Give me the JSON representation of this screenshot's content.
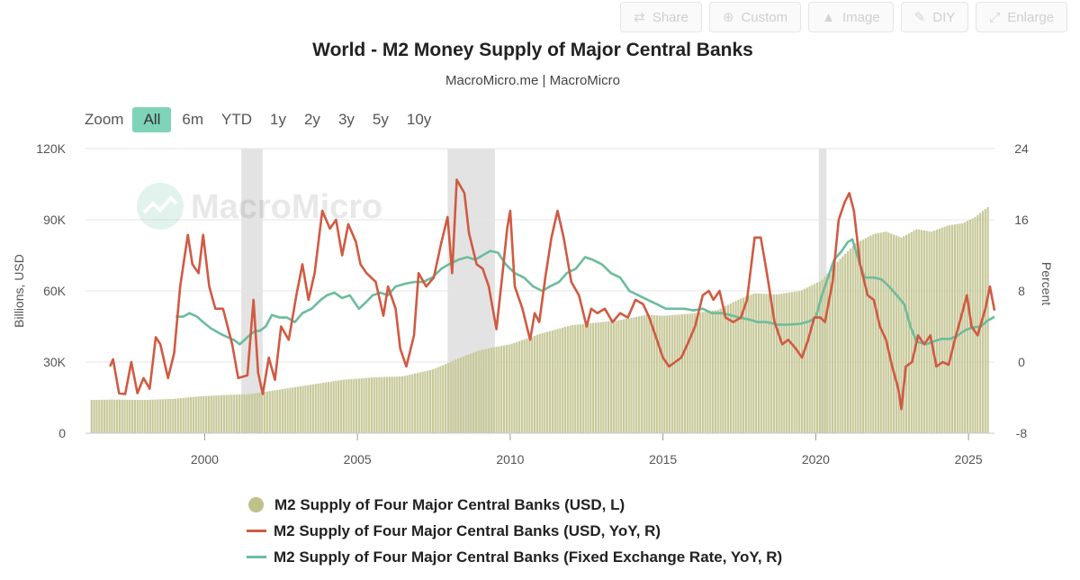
{
  "toolbar": {
    "buttons": [
      {
        "label": "Share",
        "icon": "share-icon"
      },
      {
        "label": "Custom",
        "icon": "plus-circle-icon"
      },
      {
        "label": "Image",
        "icon": "user-icon"
      },
      {
        "label": "DIY",
        "icon": "pencil-icon"
      },
      {
        "label": "Enlarge",
        "icon": "expand-icon"
      }
    ]
  },
  "header": {
    "title": "World - M2 Money Supply of Major Central Banks",
    "subtitle": "MacroMicro.me | MacroMicro"
  },
  "zoom": {
    "label": "Zoom",
    "options": [
      "All",
      "6m",
      "YTD",
      "1y",
      "2y",
      "3y",
      "5y",
      "10y"
    ],
    "active": "All"
  },
  "watermark": "MacroMicro",
  "colors": {
    "bars": "#c8c99a",
    "bar_legend": "#c0c08a",
    "usd_yoy": "#d05a42",
    "fixed_yoy": "#6cbc9c",
    "recession": "#e3e3e3",
    "grid": "#e6e6e6",
    "active_zoom": "#7fd3b8"
  },
  "chart_data": {
    "type": "bar+line",
    "x_range": [
      1996.1,
      2025.85
    ],
    "x_ticks": [
      2000,
      2005,
      2010,
      2015,
      2020,
      2025
    ],
    "left_axis": {
      "label": "Billions, USD",
      "range": [
        0,
        120000
      ],
      "ticks": [
        0,
        30000,
        60000,
        90000,
        120000
      ],
      "tick_labels": [
        "0",
        "30K",
        "60K",
        "90K",
        "120K"
      ]
    },
    "right_axis": {
      "label": "Percent",
      "range": [
        -8,
        24
      ],
      "ticks": [
        -8,
        0,
        8,
        16,
        24
      ],
      "tick_labels": [
        "-8",
        "0",
        "8",
        "16",
        "24"
      ]
    },
    "recession_bands": [
      [
        2001.2,
        2001.9
      ],
      [
        2007.95,
        2009.5
      ],
      [
        2020.1,
        2020.35
      ]
    ],
    "series": [
      {
        "name": "M2 Supply of Four Major Central Banks (USD, L)",
        "type": "column",
        "axis": "left",
        "points": [
          [
            1996.3,
            14000
          ],
          [
            1997.0,
            14200
          ],
          [
            1998.0,
            14000
          ],
          [
            1999.0,
            14500
          ],
          [
            1999.8,
            15500
          ],
          [
            2000.5,
            16000
          ],
          [
            2001.5,
            16500
          ],
          [
            2002.5,
            18500
          ],
          [
            2003.5,
            20500
          ],
          [
            2004.5,
            22500
          ],
          [
            2005.5,
            23500
          ],
          [
            2006.5,
            24000
          ],
          [
            2007.5,
            27000
          ],
          [
            2008.3,
            31500
          ],
          [
            2009.0,
            35000
          ],
          [
            2010.0,
            37500
          ],
          [
            2011.0,
            42000
          ],
          [
            2012.0,
            45500
          ],
          [
            2012.7,
            46500
          ],
          [
            2013.5,
            47500
          ],
          [
            2014.5,
            50000
          ],
          [
            2015.0,
            49500
          ],
          [
            2016.0,
            50500
          ],
          [
            2016.8,
            52000
          ],
          [
            2017.5,
            56500
          ],
          [
            2018.0,
            59000
          ],
          [
            2018.7,
            58500
          ],
          [
            2019.5,
            60000
          ],
          [
            2020.2,
            64500
          ],
          [
            2020.8,
            73500
          ],
          [
            2021.3,
            80000
          ],
          [
            2021.9,
            84000
          ],
          [
            2022.3,
            85000
          ],
          [
            2022.8,
            82500
          ],
          [
            2023.3,
            86000
          ],
          [
            2023.8,
            85000
          ],
          [
            2024.3,
            87500
          ],
          [
            2024.8,
            88500
          ],
          [
            2025.2,
            91000
          ],
          [
            2025.7,
            96000
          ]
        ]
      },
      {
        "name": "M2 Supply of Four Major Central Banks (USD, YoY, R)",
        "type": "line",
        "axis": "right",
        "points": [
          [
            1996.9,
            -0.5
          ],
          [
            1997.0,
            0.3
          ],
          [
            1997.2,
            -3.5
          ],
          [
            1997.4,
            -3.6
          ],
          [
            1997.6,
            0
          ],
          [
            1997.8,
            -3.5
          ],
          [
            1998.0,
            -1.8
          ],
          [
            1998.2,
            -3
          ],
          [
            1998.4,
            2.8
          ],
          [
            1998.55,
            2
          ],
          [
            1998.8,
            -1.8
          ],
          [
            1999.0,
            1
          ],
          [
            1999.2,
            8.5
          ],
          [
            1999.45,
            14.3
          ],
          [
            1999.6,
            11
          ],
          [
            1999.8,
            10
          ],
          [
            1999.95,
            14.3
          ],
          [
            2000.15,
            8.5
          ],
          [
            2000.35,
            6
          ],
          [
            2000.6,
            6
          ],
          [
            2000.9,
            2
          ],
          [
            2001.1,
            -1.8
          ],
          [
            2001.4,
            -1.5
          ],
          [
            2001.6,
            7
          ],
          [
            2001.75,
            -1.2
          ],
          [
            2001.9,
            -3.6
          ],
          [
            2002.1,
            0.5
          ],
          [
            2002.3,
            -2
          ],
          [
            2002.5,
            4
          ],
          [
            2002.75,
            2.5
          ],
          [
            2003.0,
            7.5
          ],
          [
            2003.2,
            11
          ],
          [
            2003.4,
            7
          ],
          [
            2003.6,
            10
          ],
          [
            2003.85,
            17
          ],
          [
            2004.1,
            15
          ],
          [
            2004.3,
            16
          ],
          [
            2004.5,
            12
          ],
          [
            2004.7,
            15.5
          ],
          [
            2004.95,
            13.5
          ],
          [
            2005.1,
            11
          ],
          [
            2005.3,
            10
          ],
          [
            2005.6,
            9
          ],
          [
            2005.85,
            5.2
          ],
          [
            2006.0,
            8.5
          ],
          [
            2006.25,
            6
          ],
          [
            2006.4,
            1.5
          ],
          [
            2006.6,
            -0.5
          ],
          [
            2006.85,
            3
          ],
          [
            2007.0,
            10
          ],
          [
            2007.25,
            8.5
          ],
          [
            2007.5,
            9.5
          ],
          [
            2007.75,
            13.5
          ],
          [
            2007.95,
            16.3
          ],
          [
            2008.1,
            10
          ],
          [
            2008.25,
            20.5
          ],
          [
            2008.5,
            19
          ],
          [
            2008.65,
            14.5
          ],
          [
            2008.9,
            11
          ],
          [
            2009.1,
            10.5
          ],
          [
            2009.3,
            8.5
          ],
          [
            2009.55,
            3.7
          ],
          [
            2009.75,
            10
          ],
          [
            2009.9,
            15
          ],
          [
            2010.0,
            17
          ],
          [
            2010.15,
            8.5
          ],
          [
            2010.4,
            6
          ],
          [
            2010.65,
            2.5
          ],
          [
            2010.8,
            5.5
          ],
          [
            2010.95,
            4.5
          ],
          [
            2011.15,
            9.5
          ],
          [
            2011.35,
            14
          ],
          [
            2011.55,
            17
          ],
          [
            2011.75,
            14
          ],
          [
            2012.0,
            9
          ],
          [
            2012.25,
            7.5
          ],
          [
            2012.5,
            4
          ],
          [
            2012.65,
            6
          ],
          [
            2012.85,
            5.5
          ],
          [
            2013.1,
            6
          ],
          [
            2013.35,
            4.5
          ],
          [
            2013.6,
            5.5
          ],
          [
            2013.85,
            5
          ],
          [
            2014.1,
            7
          ],
          [
            2014.35,
            6.5
          ],
          [
            2014.55,
            5
          ],
          [
            2014.8,
            2.5
          ],
          [
            2015.0,
            0.5
          ],
          [
            2015.2,
            -0.5
          ],
          [
            2015.4,
            0
          ],
          [
            2015.6,
            0.5
          ],
          [
            2015.8,
            2
          ],
          [
            2016.05,
            4
          ],
          [
            2016.3,
            7.5
          ],
          [
            2016.5,
            8
          ],
          [
            2016.65,
            7
          ],
          [
            2016.85,
            8
          ],
          [
            2017.05,
            5
          ],
          [
            2017.3,
            4.5
          ],
          [
            2017.55,
            5
          ],
          [
            2017.75,
            7
          ],
          [
            2018.0,
            14
          ],
          [
            2018.2,
            14
          ],
          [
            2018.4,
            10
          ],
          [
            2018.65,
            4.5
          ],
          [
            2018.9,
            2
          ],
          [
            2019.1,
            2.5
          ],
          [
            2019.35,
            1.5
          ],
          [
            2019.55,
            0.5
          ],
          [
            2019.75,
            2.5
          ],
          [
            2019.95,
            5
          ],
          [
            2020.15,
            5
          ],
          [
            2020.3,
            4.5
          ],
          [
            2020.55,
            9
          ],
          [
            2020.75,
            16
          ],
          [
            2020.95,
            18
          ],
          [
            2021.1,
            19
          ],
          [
            2021.25,
            17
          ],
          [
            2021.45,
            11
          ],
          [
            2021.7,
            7.5
          ],
          [
            2021.9,
            7
          ],
          [
            2022.1,
            4
          ],
          [
            2022.3,
            2.5
          ],
          [
            2022.5,
            -0.5
          ],
          [
            2022.7,
            -3
          ],
          [
            2022.8,
            -5.3
          ],
          [
            2022.95,
            -0.5
          ],
          [
            2023.15,
            0
          ],
          [
            2023.35,
            3
          ],
          [
            2023.55,
            2
          ],
          [
            2023.75,
            3
          ],
          [
            2023.95,
            -0.5
          ],
          [
            2024.15,
            0
          ],
          [
            2024.35,
            -0.3
          ],
          [
            2024.55,
            2.5
          ],
          [
            2024.75,
            5
          ],
          [
            2024.95,
            7.5
          ],
          [
            2025.1,
            4
          ],
          [
            2025.3,
            3
          ],
          [
            2025.55,
            6
          ],
          [
            2025.7,
            8.5
          ],
          [
            2025.85,
            5.8
          ]
        ]
      },
      {
        "name": "M2 Supply of Four Major Central Banks (Fixed Exchange Rate, YoY, R)",
        "type": "line",
        "axis": "right",
        "points": [
          [
            1999.05,
            5.1
          ],
          [
            1999.3,
            5.1
          ],
          [
            1999.5,
            5.5
          ],
          [
            1999.75,
            5.1
          ],
          [
            1999.95,
            4.5
          ],
          [
            2000.2,
            3.8
          ],
          [
            2000.5,
            3.2
          ],
          [
            2000.75,
            2.8
          ],
          [
            2000.95,
            2.5
          ],
          [
            2001.15,
            2.0
          ],
          [
            2001.4,
            2.8
          ],
          [
            2001.65,
            3.5
          ],
          [
            2001.8,
            3.5
          ],
          [
            2002.0,
            4
          ],
          [
            2002.2,
            5.3
          ],
          [
            2002.45,
            5
          ],
          [
            2002.7,
            5
          ],
          [
            2002.95,
            4.5
          ],
          [
            2003.2,
            5.5
          ],
          [
            2003.5,
            6
          ],
          [
            2003.8,
            7
          ],
          [
            2004.0,
            7.5
          ],
          [
            2004.25,
            7.8
          ],
          [
            2004.5,
            7.2
          ],
          [
            2004.75,
            7.5
          ],
          [
            2005.05,
            6
          ],
          [
            2005.3,
            6.8
          ],
          [
            2005.5,
            7.5
          ],
          [
            2005.75,
            7.8
          ],
          [
            2006.0,
            7.5
          ],
          [
            2006.25,
            8.5
          ],
          [
            2006.55,
            8.8
          ],
          [
            2006.85,
            9
          ],
          [
            2007.15,
            9
          ],
          [
            2007.45,
            9.5
          ],
          [
            2007.75,
            10.5
          ],
          [
            2008.0,
            11
          ],
          [
            2008.3,
            11.5
          ],
          [
            2008.6,
            11.8
          ],
          [
            2008.85,
            11.5
          ],
          [
            2009.1,
            12
          ],
          [
            2009.35,
            12.5
          ],
          [
            2009.6,
            12.3
          ],
          [
            2009.85,
            11
          ],
          [
            2010.15,
            10
          ],
          [
            2010.45,
            9.5
          ],
          [
            2010.75,
            8.5
          ],
          [
            2011.05,
            8
          ],
          [
            2011.3,
            8.5
          ],
          [
            2011.6,
            9
          ],
          [
            2011.85,
            10
          ],
          [
            2012.15,
            10.5
          ],
          [
            2012.45,
            11.8
          ],
          [
            2012.7,
            11.5
          ],
          [
            2013.0,
            11
          ],
          [
            2013.3,
            10
          ],
          [
            2013.6,
            9.5
          ],
          [
            2013.9,
            8
          ],
          [
            2014.2,
            7.5
          ],
          [
            2014.5,
            7
          ],
          [
            2014.8,
            6.5
          ],
          [
            2015.1,
            6
          ],
          [
            2015.4,
            6
          ],
          [
            2015.7,
            6
          ],
          [
            2016.0,
            5.8
          ],
          [
            2016.3,
            6
          ],
          [
            2016.6,
            5.5
          ],
          [
            2016.9,
            5.5
          ],
          [
            2017.2,
            5.3
          ],
          [
            2017.5,
            5
          ],
          [
            2017.8,
            4.8
          ],
          [
            2018.1,
            4.5
          ],
          [
            2018.4,
            4.5
          ],
          [
            2018.75,
            4.2
          ],
          [
            2019.1,
            4.2
          ],
          [
            2019.5,
            4.3
          ],
          [
            2019.8,
            4.6
          ],
          [
            2020.0,
            5
          ],
          [
            2020.2,
            7.5
          ],
          [
            2020.4,
            9.5
          ],
          [
            2020.6,
            11.5
          ],
          [
            2020.85,
            12.5
          ],
          [
            2021.05,
            13.5
          ],
          [
            2021.2,
            13.8
          ],
          [
            2021.4,
            11.5
          ],
          [
            2021.6,
            9.5
          ],
          [
            2021.9,
            9.5
          ],
          [
            2022.15,
            9.3
          ],
          [
            2022.4,
            8.5
          ],
          [
            2022.65,
            7.5
          ],
          [
            2022.9,
            6.5
          ],
          [
            2023.1,
            4
          ],
          [
            2023.3,
            2.3
          ],
          [
            2023.6,
            2
          ],
          [
            2023.85,
            2.3
          ],
          [
            2024.1,
            2.6
          ],
          [
            2024.4,
            2.6
          ],
          [
            2024.65,
            3
          ],
          [
            2024.9,
            3.6
          ],
          [
            2025.15,
            3.9
          ],
          [
            2025.4,
            4
          ],
          [
            2025.6,
            4.6
          ],
          [
            2025.85,
            5.1
          ]
        ]
      }
    ]
  }
}
